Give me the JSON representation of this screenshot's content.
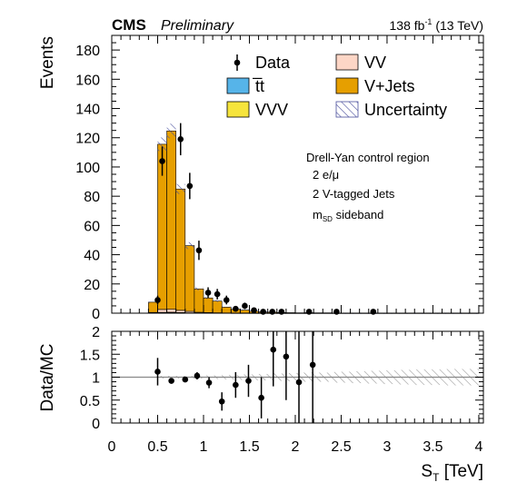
{
  "header": {
    "experiment": "CMS",
    "status": "Preliminary",
    "lumi_value": "138 fb",
    "lumi_exp": "-1",
    "lumi_energy": " (13 TeV)"
  },
  "region_lines": [
    "Drell-Yan control region",
    "2 e/μ",
    "2 V-tagged Jets"
  ],
  "region_msd": {
    "main": "m",
    "sub": "SD",
    "rest": " sideband"
  },
  "colors": {
    "VJets": "#e69f00",
    "VV": "#fdd6c6",
    "ttbar": "#56b4e9",
    "VVV": "#f6e43c",
    "uncertainty": "#4a4f9c",
    "ratio_band": "#999999"
  },
  "chart_data": [
    {
      "type": "bar",
      "panel": "main",
      "ylabel": "Events",
      "xlim": [
        0,
        4.05
      ],
      "ylim": [
        0,
        190
      ],
      "yticks": [
        0,
        20,
        40,
        60,
        80,
        100,
        120,
        140,
        160,
        180
      ],
      "legend": [
        {
          "key": "data",
          "label": "Data",
          "style": "marker"
        },
        {
          "key": "VV",
          "label": "VV",
          "style": "box"
        },
        {
          "key": "ttbar",
          "label": "t̅t",
          "style": "box"
        },
        {
          "key": "VJets",
          "label": "V+Jets",
          "style": "box"
        },
        {
          "key": "VVV",
          "label": "VVV",
          "style": "box"
        },
        {
          "key": "uncertainty",
          "label": "Uncertainty",
          "style": "hatch"
        }
      ],
      "bins": [
        [
          0.4,
          0.5
        ],
        [
          0.5,
          0.6
        ],
        [
          0.6,
          0.7
        ],
        [
          0.7,
          0.8
        ],
        [
          0.8,
          0.9
        ],
        [
          0.9,
          1.0
        ],
        [
          1.0,
          1.1
        ],
        [
          1.1,
          1.2
        ],
        [
          1.2,
          1.3
        ],
        [
          1.3,
          1.4
        ],
        [
          1.4,
          1.5
        ],
        [
          1.5,
          1.6
        ],
        [
          1.6,
          1.7
        ],
        [
          1.7,
          1.8
        ],
        [
          1.8,
          1.9
        ],
        [
          1.9,
          2.0
        ],
        [
          2.0,
          2.1
        ],
        [
          2.1,
          2.2
        ],
        [
          2.2,
          2.4
        ],
        [
          2.4,
          2.6
        ],
        [
          2.6,
          2.8
        ],
        [
          2.8,
          3.0
        ],
        [
          3.0,
          4.0
        ]
      ],
      "series": [
        {
          "name": "V+Jets",
          "values": [
            7,
            113,
            122,
            83,
            45,
            16,
            10,
            8,
            4,
            2.5,
            2,
            1.3,
            0.8,
            0.6,
            0.4,
            0.3,
            0.2,
            0.3,
            0.2,
            0.1,
            0.1,
            0.1,
            0.1
          ]
        },
        {
          "name": "VV",
          "values": [
            0.3,
            2,
            2,
            1.5,
            1,
            0.5,
            0.3,
            0.2,
            0.1,
            0.1,
            0.1,
            0.05,
            0.05,
            0.05,
            0.02,
            0.02,
            0.02,
            0.01,
            0.01,
            0.01,
            0.01,
            0.01,
            0.01
          ]
        },
        {
          "name": "t̅t",
          "values": [
            0.2,
            0.5,
            0.6,
            0.4,
            0.2,
            0.1,
            0.1,
            0.05,
            0.05,
            0.02,
            0.02,
            0.01,
            0.01,
            0.01,
            0.01,
            0.01,
            0.01,
            0.01,
            0.01,
            0.01,
            0.01,
            0.01,
            0.01
          ]
        },
        {
          "name": "VVV",
          "values": [
            0.01,
            0.05,
            0.05,
            0.03,
            0.02,
            0.01,
            0.01,
            0.01,
            0.01,
            0.01,
            0.01,
            0.01,
            0.01,
            0.01,
            0.01,
            0.01,
            0.01,
            0.01,
            0.01,
            0.01,
            0.01,
            0.01,
            0.01
          ]
        }
      ],
      "uncertainty_rel": [
        0.08,
        0.04,
        0.04,
        0.04,
        0.05,
        0.06,
        0.06,
        0.07,
        0.08,
        0.08,
        0.1,
        0.1,
        0.12,
        0.12,
        0.15,
        0.15,
        0.15,
        0.15,
        0.2,
        0.2,
        0.2,
        0.25,
        0.25
      ],
      "data": {
        "x": [
          0.5,
          0.55,
          0.75,
          0.85,
          0.95,
          1.05,
          1.15,
          1.25,
          1.35,
          1.45,
          1.55,
          1.65,
          1.75,
          1.85,
          2.15,
          2.45,
          2.85
        ],
        "y": [
          9,
          104,
          119,
          87,
          43,
          14,
          13,
          9,
          3,
          5,
          2,
          1,
          1,
          1,
          1,
          1,
          1
        ],
        "yerr": [
          3,
          10,
          11,
          9,
          6.6,
          3.7,
          3.6,
          3,
          1.7,
          2.2,
          1.4,
          1,
          1,
          1,
          1,
          1,
          1
        ]
      }
    },
    {
      "type": "scatter",
      "panel": "ratio",
      "xlabel": "S_T [TeV]",
      "ylabel": "Data/MC",
      "xlim": [
        0,
        4.05
      ],
      "ylim": [
        0,
        2
      ],
      "yticks": [
        0,
        0.5,
        1,
        1.5,
        2
      ],
      "yticklabels": [
        "0",
        "0.5",
        "1",
        "1.5",
        "2"
      ],
      "xticks": [
        0,
        0.5,
        1,
        1.5,
        2,
        2.5,
        3,
        3.5,
        4
      ],
      "xticklabels": [
        "0",
        "0.5",
        "1",
        "1.5",
        "2",
        "2.5",
        "3",
        "3.5",
        "4"
      ],
      "reference_line": 1,
      "x": [
        0.5,
        0.65,
        0.8,
        0.93,
        1.06,
        1.2,
        1.35,
        1.49,
        1.63,
        1.76,
        1.9,
        2.04,
        2.19
      ],
      "y": [
        1.12,
        0.92,
        0.95,
        1.03,
        0.88,
        0.47,
        0.83,
        0.92,
        0.55,
        1.6,
        1.45,
        0.89,
        1.27
      ],
      "yerr": [
        0.3,
        0.06,
        0.06,
        0.08,
        0.12,
        0.2,
        0.28,
        0.35,
        0.45,
        0.8,
        0.95,
        1.3,
        1.6
      ],
      "band_rel": [
        0.03,
        0.03,
        0.03,
        0.04,
        0.05,
        0.06,
        0.07,
        0.08,
        0.09,
        0.1,
        0.1,
        0.12,
        0.13,
        0.14,
        0.15,
        0.16,
        0.17,
        0.17,
        0.18,
        0.18
      ]
    }
  ]
}
